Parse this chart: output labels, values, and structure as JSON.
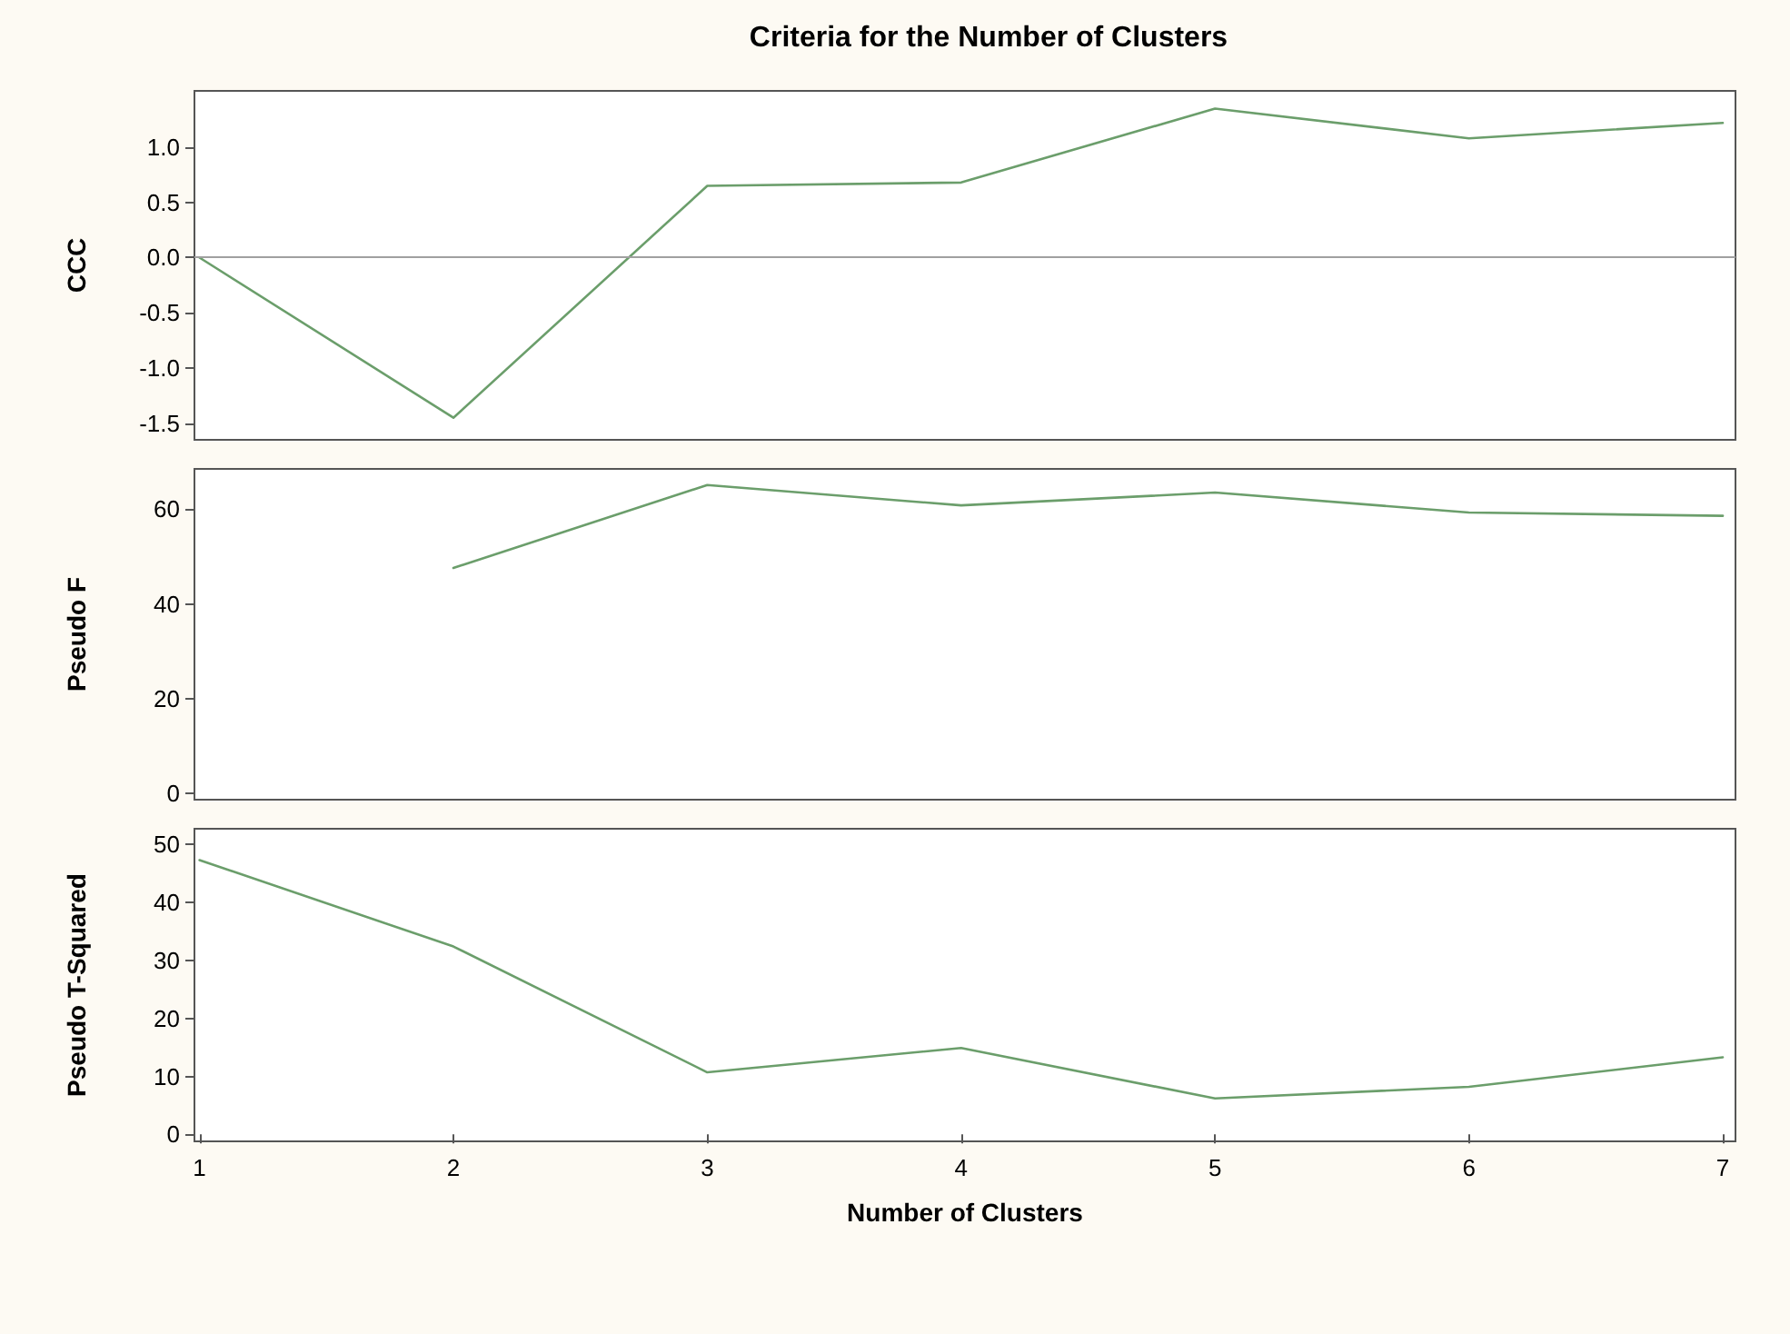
{
  "chart_data": [
    {
      "type": "line",
      "title": "Criteria for the Number of Clusters",
      "ylabel": "CCC",
      "x": [
        1,
        2,
        3,
        4,
        5,
        6,
        7
      ],
      "xlim": [
        0.98,
        7.05
      ],
      "xticks": [
        1,
        2,
        3,
        4,
        5,
        6,
        7
      ],
      "ylim": [
        -1.65,
        1.51
      ],
      "yticks": [
        -1.5,
        {
          "value": -1,
          "label": "-1.0"
        },
        -0.5,
        {
          "value": 0,
          "label": "0.0"
        },
        0.5,
        {
          "value": 1,
          "label": "1.0"
        }
      ],
      "tick_labels": "y",
      "marker": "none",
      "line_style": "solid",
      "series": [
        {
          "color": "#6b9e6b",
          "values": [
            0.0,
            -1.45,
            0.65,
            0.68,
            1.35,
            1.08,
            1.22
          ]
        }
      ],
      "ref_lines": [
        {
          "axis": "y",
          "value": 0,
          "color": "#a0a0a0"
        }
      ]
    },
    {
      "type": "line",
      "ylabel": "Pseudo F",
      "xlim": [
        0.98,
        7.05
      ],
      "xticks": [
        1,
        2,
        3,
        4,
        5,
        6,
        7
      ],
      "ylim": [
        -1.3,
        68.5
      ],
      "yticks": [
        0,
        20,
        40,
        60
      ],
      "tick_labels": "y",
      "marker": "none",
      "line_style": "solid",
      "series": [
        {
          "color": "#6b9e6b",
          "x": [
            2,
            3,
            4,
            5,
            6,
            7
          ],
          "values": [
            47.6,
            65.1,
            60.8,
            63.5,
            59.3,
            58.6
          ]
        }
      ]
    },
    {
      "type": "line",
      "ylabel": "Pseudo T-Squared",
      "xlabel": "Number of Clusters",
      "x": [
        1,
        2,
        3,
        4,
        5,
        6,
        7
      ],
      "xlim": [
        0.98,
        7.05
      ],
      "xticks": [
        1,
        2,
        3,
        4,
        5,
        6,
        7
      ],
      "ylim": [
        -1.2,
        52.7
      ],
      "yticks": [
        0,
        10,
        20,
        30,
        40,
        50
      ],
      "marker": "none",
      "line_style": "solid",
      "series": [
        {
          "color": "#6b9e6b",
          "values": [
            47.3,
            32.4,
            10.7,
            14.9,
            6.2,
            8.2,
            13.3
          ]
        }
      ]
    }
  ]
}
